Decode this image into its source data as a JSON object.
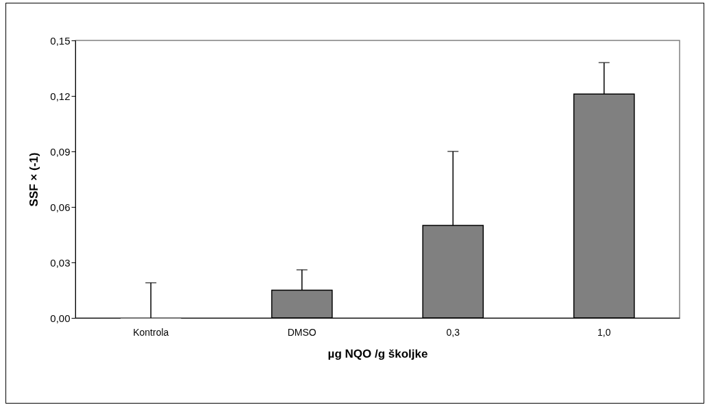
{
  "chart_data": {
    "type": "bar",
    "xlabel": "µg NQO /g školjke",
    "ylabel": "SSF × (-1)",
    "categories": [
      "Kontrola",
      "DMSO",
      "0,3",
      "1,0"
    ],
    "values": [
      0,
      0.015,
      0.05,
      0.121
    ],
    "errors": [
      [
        0,
        0.019
      ],
      [
        0.015,
        0.026
      ],
      [
        0.05,
        0.09
      ],
      [
        0.121,
        0.138
      ]
    ],
    "color": "#808080",
    "ylim": [
      0,
      0.15
    ],
    "yticks": [
      {
        "value": 0,
        "label": "0,00"
      },
      {
        "value": 0.03,
        "label": "0,03"
      },
      {
        "value": 0.06,
        "label": "0,06"
      },
      {
        "value": 0.09,
        "label": "0,09"
      },
      {
        "value": 0.12,
        "label": "0,12"
      },
      {
        "value": 0.15,
        "label": "0,15"
      }
    ],
    "grid": false
  }
}
